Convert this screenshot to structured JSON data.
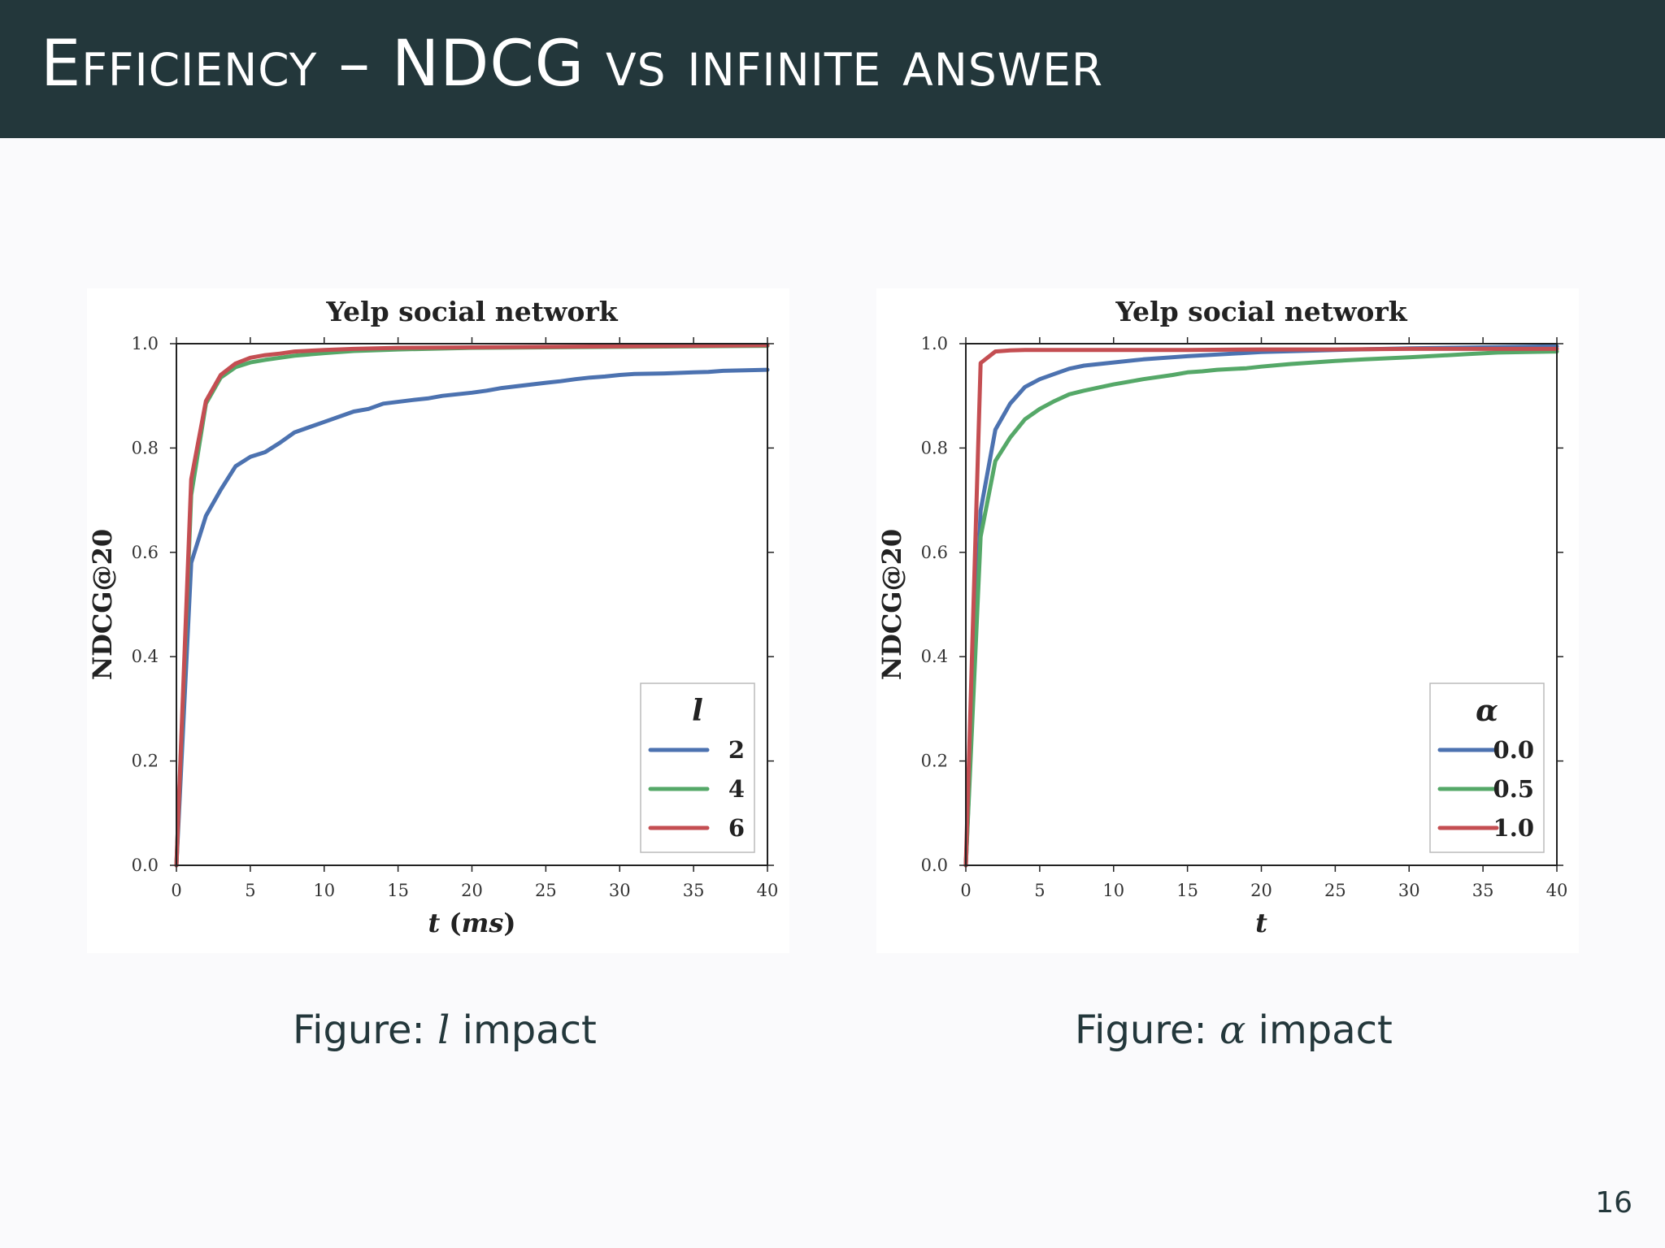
{
  "slide": {
    "title": "Efficiency – NDCG vs infinite answer",
    "page_number": "16"
  },
  "captions": [
    {
      "prefix": "Figure: ",
      "symbol": "l",
      "suffix": " impact"
    },
    {
      "prefix": "Figure: ",
      "symbol": "α",
      "suffix": " impact"
    }
  ],
  "chart_data": [
    {
      "type": "line",
      "title": "Yelp social network",
      "xlabel": "t (ms)",
      "ylabel": "NDCG@20",
      "xlim": [
        0,
        40
      ],
      "ylim": [
        0,
        1.0
      ],
      "xticks": [
        "0",
        "5",
        "10",
        "15",
        "20",
        "25",
        "30",
        "35",
        "40"
      ],
      "yticks": [
        "0.0",
        "0.2",
        "0.4",
        "0.6",
        "0.8",
        "1.0"
      ],
      "legend_title": "l",
      "legend_position": "lower-right",
      "series": [
        {
          "name": "2",
          "color": "#4c72b0",
          "x": [
            0,
            1,
            2,
            3,
            4,
            5,
            6,
            7,
            8,
            10,
            12,
            13,
            14,
            16,
            17,
            18,
            20,
            21,
            22,
            25,
            26,
            27,
            28,
            29,
            30,
            31,
            33,
            35,
            36,
            37,
            40
          ],
          "y": [
            0.0,
            0.58,
            0.67,
            0.72,
            0.765,
            0.783,
            0.792,
            0.81,
            0.83,
            0.85,
            0.87,
            0.875,
            0.885,
            0.892,
            0.895,
            0.9,
            0.906,
            0.91,
            0.915,
            0.925,
            0.928,
            0.932,
            0.935,
            0.937,
            0.94,
            0.942,
            0.943,
            0.945,
            0.946,
            0.948,
            0.95
          ]
        },
        {
          "name": "4",
          "color": "#55a868",
          "x": [
            0,
            1,
            2,
            3,
            4,
            5,
            6,
            8,
            10,
            12,
            15,
            20,
            25,
            30,
            35,
            40
          ],
          "y": [
            0.0,
            0.71,
            0.885,
            0.935,
            0.955,
            0.964,
            0.969,
            0.977,
            0.982,
            0.986,
            0.989,
            0.992,
            0.993,
            0.994,
            0.995,
            0.996
          ]
        },
        {
          "name": "6",
          "color": "#c44e52",
          "x": [
            0,
            1,
            2,
            3,
            4,
            5,
            6,
            7,
            8,
            10,
            12,
            15,
            20,
            25,
            30,
            35,
            40
          ],
          "y": [
            0.0,
            0.74,
            0.89,
            0.94,
            0.962,
            0.973,
            0.978,
            0.981,
            0.985,
            0.988,
            0.99,
            0.992,
            0.993,
            0.994,
            0.995,
            0.996,
            0.997
          ]
        }
      ]
    },
    {
      "type": "line",
      "title": "Yelp social network",
      "xlabel": "t",
      "ylabel": "NDCG@20",
      "xlim": [
        0,
        40
      ],
      "ylim": [
        0,
        1.0
      ],
      "xticks": [
        "0",
        "5",
        "10",
        "15",
        "20",
        "25",
        "30",
        "35",
        "40"
      ],
      "yticks": [
        "0.0",
        "0.2",
        "0.4",
        "0.6",
        "0.8",
        "1.0"
      ],
      "legend_title": "α",
      "legend_position": "lower-right",
      "series": [
        {
          "name": "0.0",
          "color": "#4c72b0",
          "x": [
            0,
            1,
            2,
            3,
            4,
            5,
            6,
            7,
            8,
            10,
            12,
            15,
            20,
            25,
            30,
            35,
            40
          ],
          "y": [
            0.0,
            0.68,
            0.835,
            0.885,
            0.917,
            0.932,
            0.942,
            0.952,
            0.958,
            0.964,
            0.97,
            0.976,
            0.984,
            0.988,
            0.991,
            0.993,
            0.995
          ]
        },
        {
          "name": "0.5",
          "color": "#55a868",
          "x": [
            0,
            1,
            2,
            3,
            4,
            5,
            6,
            7,
            8,
            10,
            11,
            12,
            14,
            15,
            16,
            17,
            19,
            20,
            22,
            25,
            27,
            30,
            32,
            34,
            36,
            40
          ],
          "y": [
            0.0,
            0.63,
            0.775,
            0.82,
            0.855,
            0.875,
            0.89,
            0.903,
            0.91,
            0.922,
            0.927,
            0.932,
            0.94,
            0.945,
            0.947,
            0.95,
            0.953,
            0.956,
            0.961,
            0.967,
            0.97,
            0.974,
            0.977,
            0.98,
            0.983,
            0.985
          ]
        },
        {
          "name": "1.0",
          "color": "#c44e52",
          "x": [
            0,
            1,
            2,
            3,
            4,
            5,
            10,
            15,
            20,
            25,
            30,
            35,
            40
          ],
          "y": [
            0.0,
            0.963,
            0.985,
            0.987,
            0.988,
            0.988,
            0.988,
            0.988,
            0.989,
            0.989,
            0.99,
            0.99,
            0.99
          ]
        }
      ]
    }
  ]
}
